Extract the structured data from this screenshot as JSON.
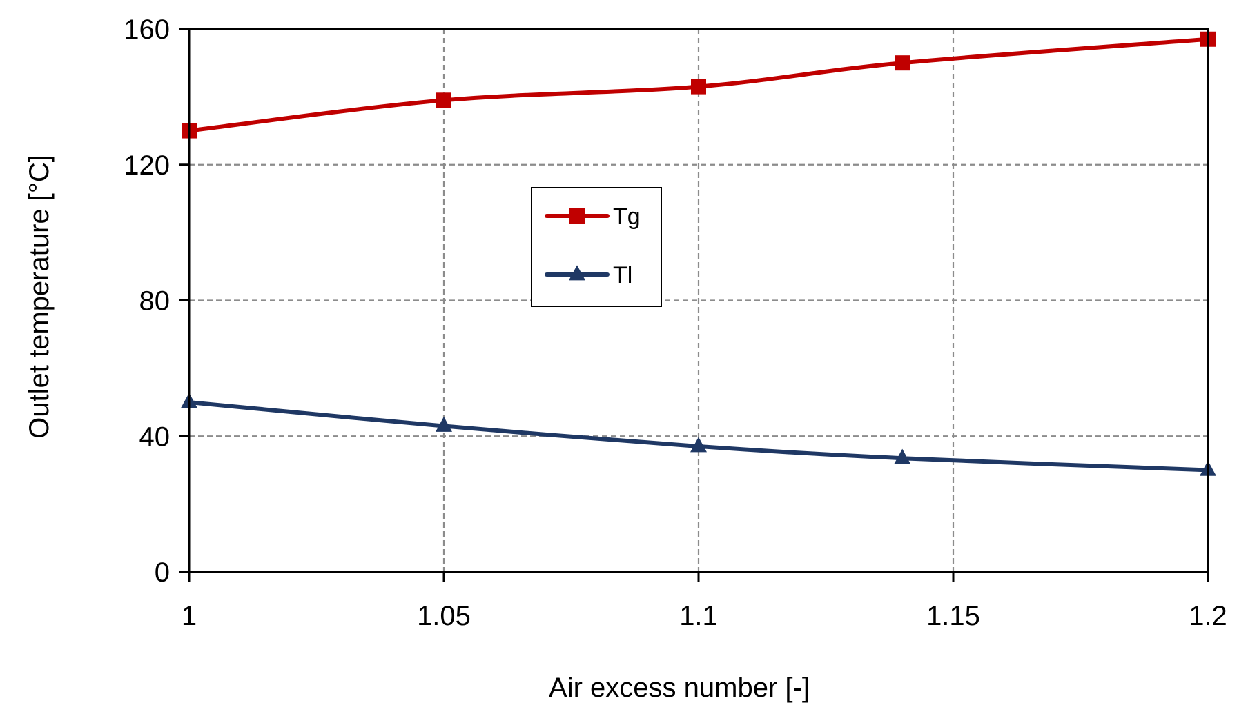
{
  "chart_data": {
    "type": "line",
    "xlabel": "Air excess number [-]",
    "ylabel": "Outlet temperature  [°C]",
    "xlim": [
      1,
      1.2
    ],
    "ylim": [
      0,
      160
    ],
    "x_ticks": [
      1,
      1.05,
      1.1,
      1.15,
      1.2
    ],
    "x_tick_labels": [
      "1",
      "1.05",
      "1.1",
      "1.15",
      "1.2"
    ],
    "y_ticks": [
      0,
      40,
      80,
      120,
      160
    ],
    "y_tick_labels": [
      "0",
      "40",
      "80",
      "120",
      "160"
    ],
    "grid": true,
    "legend_position": "center",
    "series": [
      {
        "name": "Tg",
        "color": "#c00000",
        "marker": "square",
        "x": [
          1,
          1.05,
          1.1,
          1.14,
          1.2
        ],
        "y": [
          130,
          139,
          143,
          150,
          157
        ]
      },
      {
        "name": "Tl",
        "color": "#1f3864",
        "marker": "triangle",
        "x": [
          1,
          1.05,
          1.1,
          1.14,
          1.2
        ],
        "y": [
          50,
          43,
          37,
          33.5,
          30
        ]
      }
    ]
  }
}
